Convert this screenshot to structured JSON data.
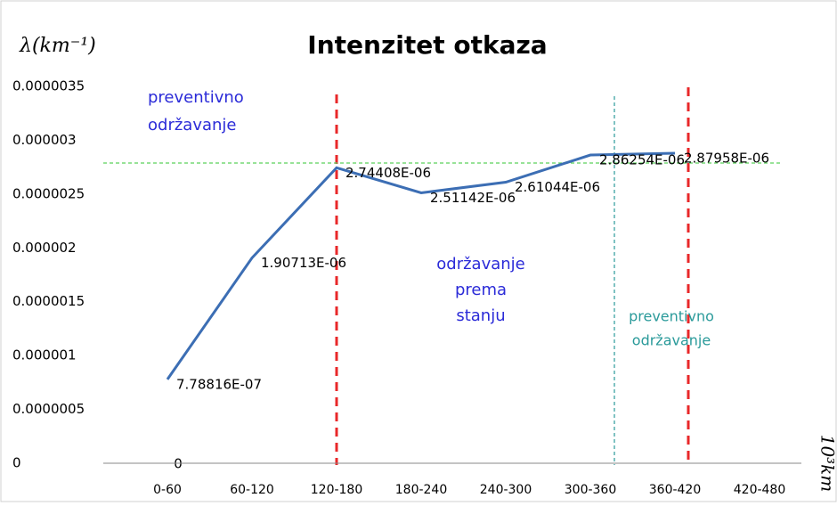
{
  "chart_data": {
    "type": "line",
    "title": "Intenzitet otkaza",
    "y_label": "λ(km⁻¹)",
    "x_label": "10³km",
    "categories": [
      "0-60",
      "60-120",
      "120-180",
      "180-240",
      "240-300",
      "300-360",
      "360-420",
      "420-480"
    ],
    "series": [
      {
        "name": "Intenzitet otkaza",
        "color": "#3c6eb4",
        "values": [
          7.78816e-07,
          1.90713e-06,
          2.74408e-06,
          2.51142e-06,
          2.61044e-06,
          2.86254e-06,
          2.87958e-06,
          null
        ],
        "value_labels": [
          "7.78816E-07",
          "1.90713E-06",
          "2.74408E-06",
          "2.51142E-06",
          "2.61044E-06",
          "2.86254E-06",
          "2.87958E-06",
          null
        ]
      }
    ],
    "ylim": [
      0,
      3.5e-06
    ],
    "yticks": [
      0,
      {
        "value": 5e-07,
        "label": "0.0000005"
      },
      {
        "value": 1e-06,
        "label": "0.000001"
      },
      {
        "value": 1.5e-06,
        "label": "0.0000015"
      },
      {
        "value": 2e-06,
        "label": "0.000002"
      },
      {
        "value": 2.5e-06,
        "label": "0.0000025"
      },
      {
        "value": 3e-06,
        "label": "0.000003"
      },
      {
        "value": 3.5e-06,
        "label": "0.0000035"
      }
    ],
    "annotations": [
      "preventivno",
      "održavanje",
      "održavanje",
      "prema",
      "stanju",
      "preventivno",
      "održavanje",
      "0"
    ]
  }
}
